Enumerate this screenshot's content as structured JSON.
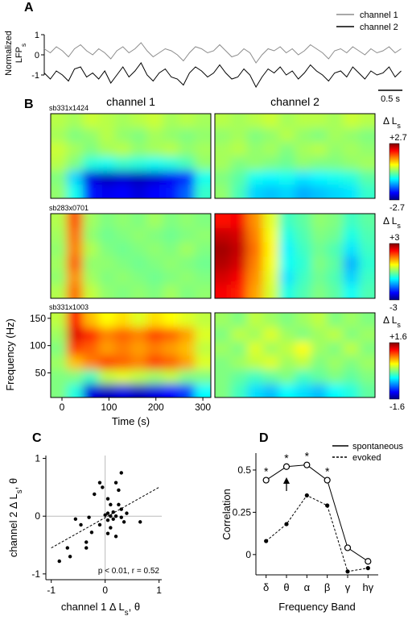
{
  "chart_data": [
    {
      "type": "line",
      "label": "A",
      "ylabel": [
        [
          "Normalized"
        ],
        [
          "LFP",
          "s"
        ]
      ],
      "xlim": [
        0,
        7.4
      ],
      "ylim": [
        -1.6,
        1.2
      ],
      "yticks": [
        1,
        0,
        -1
      ],
      "x": [
        0,
        0.125,
        0.25,
        0.375,
        0.5,
        0.625,
        0.75,
        0.875,
        1,
        1.125,
        1.25,
        1.375,
        1.5,
        1.625,
        1.75,
        1.875,
        2,
        2.125,
        2.25,
        2.375,
        2.5,
        2.625,
        2.75,
        2.875,
        3,
        3.125,
        3.25,
        3.375,
        3.5,
        3.625,
        3.75,
        3.875,
        4,
        4.125,
        4.25,
        4.375,
        4.5,
        4.625,
        4.75,
        4.875,
        5,
        5.125,
        5.25,
        5.375,
        5.5,
        5.625,
        5.75,
        5.875,
        6,
        6.125,
        6.25,
        6.375,
        6.5,
        6.625,
        6.75,
        6.875,
        7,
        7.125,
        7.25,
        7.375
      ],
      "series": [
        {
          "name": "channel 1",
          "color": "#8c8c8c",
          "values": [
            0.3,
            0.1,
            0.4,
            0.2,
            -0.1,
            0.3,
            0.5,
            0.2,
            0.0,
            0.3,
            0.1,
            -0.2,
            0.2,
            0.4,
            0.1,
            0.3,
            0.6,
            0.2,
            -0.1,
            0.1,
            0.3,
            0.2,
            0.0,
            -0.3,
            0.1,
            0.4,
            0.3,
            0.1,
            0.2,
            0.5,
            0.2,
            -0.1,
            0.0,
            0.3,
            0.1,
            -0.4,
            0.0,
            0.3,
            0.2,
            0.4,
            0.1,
            0.3,
            0.0,
            0.2,
            0.5,
            0.3,
            0.1,
            -0.2,
            0.2,
            0.3,
            0.1,
            0.4,
            0.2,
            0.0,
            0.3,
            0.1,
            0.2,
            0.4,
            0.1,
            0.3
          ]
        },
        {
          "name": "channel 2",
          "color": "#000000",
          "values": [
            -0.9,
            -1.2,
            -0.8,
            -1.0,
            -1.3,
            -0.7,
            -0.6,
            -1.1,
            -0.9,
            -1.2,
            -0.8,
            -1.4,
            -1.0,
            -0.6,
            -1.1,
            -0.8,
            -0.4,
            -1.0,
            -1.3,
            -0.9,
            -0.7,
            -1.1,
            -1.2,
            -1.5,
            -0.9,
            -0.6,
            -0.8,
            -1.1,
            -0.9,
            -0.5,
            -0.9,
            -1.2,
            -1.1,
            -0.7,
            -1.0,
            -1.6,
            -1.1,
            -0.7,
            -0.9,
            -0.6,
            -1.0,
            -0.8,
            -1.2,
            -0.9,
            -0.5,
            -0.8,
            -1.0,
            -1.3,
            -0.9,
            -0.8,
            -1.1,
            -0.6,
            -0.9,
            -1.2,
            -0.8,
            -1.0,
            -0.9,
            -0.6,
            -1.1,
            -0.8
          ]
        }
      ],
      "legend": "upper right",
      "scalebar": {
        "value": 0.5,
        "label": "0.5 s"
      }
    },
    {
      "type": "heatmap",
      "label": "B",
      "columns": [
        "channel 1",
        "channel 2"
      ],
      "xlim": [
        -24,
        317
      ],
      "xticks": [
        0,
        100,
        200,
        300
      ],
      "xlabel": "Time (s)",
      "ylim": [
        5,
        160
      ],
      "yticks": [
        50,
        100,
        150
      ],
      "ylabel": "Frequency (Hz)",
      "colorbar_label": [
        "Δ L",
        "s"
      ],
      "colormap": "jet",
      "recordings": [
        {
          "name": "sb331x1424",
          "clim": [
            -2.7,
            2.7
          ],
          "cticks": [
            {
              "value": 2.7,
              "label": "+2.7"
            },
            -2.7
          ],
          "z": [
            [
              [
                0.1,
                -0.6,
                -1.9,
                -2.1,
                -2.0,
                -2.2,
                -2.0,
                -1.9,
                -1.5,
                -0.4
              ],
              [
                0.0,
                -0.9,
                -2.2,
                -2.4,
                -2.3,
                -2.4,
                -2.3,
                -2.1,
                -1.8,
                -0.6
              ],
              [
                0.3,
                0.0,
                -0.5,
                -0.6,
                -0.4,
                -0.5,
                -0.6,
                -0.5,
                -0.3,
                0.1
              ],
              [
                0.4,
                0.2,
                0.0,
                0.2,
                0.3,
                0.1,
                0.2,
                0.3,
                0.1,
                0.2
              ],
              [
                0.2,
                0.0,
                0.1,
                0.3,
                0.1,
                0.0,
                0.2,
                0.1,
                0.0,
                0.1
              ],
              [
                0.3,
                0.2,
                0.4,
                0.3,
                0.2,
                0.3,
                0.4,
                0.2,
                0.3,
                0.2
              ]
            ],
            [
              [
                0.1,
                -0.3,
                -0.9,
                -1.0,
                -0.9,
                -1.1,
                -1.0,
                -0.9,
                -0.8,
                -0.4
              ],
              [
                0.0,
                -0.2,
                -0.6,
                -0.7,
                -0.6,
                -0.8,
                -0.7,
                -0.6,
                -0.5,
                -0.2
              ],
              [
                0.2,
                0.0,
                0.1,
                0.0,
                -0.1,
                0.1,
                0.0,
                0.0,
                0.1,
                0.2
              ],
              [
                0.2,
                0.3,
                0.1,
                0.2,
                0.0,
                0.2,
                0.3,
                0.1,
                0.2,
                0.1
              ],
              [
                0.1,
                0.2,
                0.0,
                0.1,
                0.3,
                0.1,
                0.0,
                0.2,
                0.1,
                0.0
              ],
              [
                0.3,
                0.2,
                0.3,
                0.4,
                0.2,
                0.3,
                0.3,
                0.2,
                0.4,
                0.3
              ]
            ]
          ]
        },
        {
          "name": "sb283x0701",
          "clim": [
            -3,
            3
          ],
          "cticks": [
            {
              "value": 3,
              "label": "+3"
            },
            -3
          ],
          "z": [
            [
              [
                0.3,
                1.6,
                0.4,
                0.1,
                0.0,
                0.1,
                0.0,
                0.2,
                0.0,
                0.1
              ],
              [
                0.1,
                1.4,
                0.2,
                0.0,
                0.1,
                0.0,
                -0.1,
                0.0,
                0.1,
                0.0
              ],
              [
                0.2,
                1.7,
                0.1,
                0.1,
                0.0,
                -0.1,
                0.0,
                0.1,
                0.0,
                -0.1
              ],
              [
                0.1,
                1.5,
                0.3,
                0.0,
                -0.1,
                0.0,
                0.1,
                0.0,
                0.2,
                0.0
              ],
              [
                0.2,
                1.6,
                0.1,
                -0.1,
                0.0,
                0.1,
                0.0,
                -0.1,
                0.0,
                0.1
              ],
              [
                0.3,
                1.8,
                0.2,
                0.0,
                0.1,
                0.0,
                0.2,
                0.0,
                0.1,
                0.0
              ]
            ],
            [
              [
                2.3,
                2.1,
                1.3,
                0.5,
                -0.6,
                -0.3,
                0.0,
                -0.2,
                -0.7,
                -0.3
              ],
              [
                2.5,
                2.3,
                1.4,
                0.6,
                -0.9,
                -0.4,
                -0.1,
                -0.3,
                -1.0,
                -0.4
              ],
              [
                2.7,
                2.5,
                1.5,
                0.7,
                -0.7,
                -0.5,
                0.0,
                -0.2,
                -1.2,
                -0.5
              ],
              [
                2.8,
                2.6,
                1.6,
                0.8,
                -0.8,
                -0.4,
                -0.1,
                -0.3,
                -0.9,
                -0.4
              ],
              [
                2.6,
                2.5,
                1.5,
                0.7,
                -0.6,
                -0.3,
                0.0,
                -0.1,
                -0.6,
                -0.3
              ],
              [
                2.2,
                2.3,
                1.4,
                0.6,
                -0.4,
                -0.2,
                0.1,
                0.0,
                -0.4,
                -0.2
              ]
            ]
          ]
        },
        {
          "name": "sb331x1003",
          "clim": [
            -1.6,
            1.6
          ],
          "cticks": [
            {
              "value": 1.6,
              "label": "+1.6"
            },
            -1.6
          ],
          "z": [
            [
              [
                0.0,
                -0.3,
                -1.3,
                -1.4,
                -1.3,
                -1.4,
                -1.3,
                -1.2,
                -1.0,
                -0.4
              ],
              [
                0.0,
                0.0,
                -0.2,
                0.2,
                0.3,
                0.2,
                0.1,
                0.2,
                0.0,
                0.0
              ],
              [
                0.1,
                0.6,
                0.8,
                1.0,
                0.9,
                0.8,
                1.0,
                0.9,
                0.7,
                0.3
              ],
              [
                0.0,
                1.0,
                0.9,
                0.7,
                0.8,
                0.7,
                0.8,
                0.7,
                0.6,
                0.2
              ],
              [
                0.1,
                1.3,
                1.1,
                0.8,
                0.9,
                0.8,
                1.0,
                0.9,
                0.7,
                0.3
              ],
              [
                0.2,
                1.2,
                0.6,
                0.4,
                0.5,
                0.3,
                0.5,
                0.4,
                0.3,
                0.2
              ]
            ],
            [
              [
                0.0,
                -0.2,
                -0.5,
                -0.6,
                -0.4,
                -0.5,
                -0.6,
                -0.4,
                -0.3,
                -0.1
              ],
              [
                0.0,
                -0.1,
                -0.2,
                -0.1,
                0.0,
                -0.2,
                -0.1,
                0.0,
                -0.1,
                0.0
              ],
              [
                0.0,
                0.1,
                0.2,
                0.3,
                0.1,
                0.2,
                0.0,
                0.1,
                0.0,
                0.1
              ],
              [
                0.1,
                0.0,
                0.3,
                0.1,
                0.2,
                0.4,
                0.1,
                0.0,
                0.2,
                0.0
              ],
              [
                0.0,
                0.2,
                0.1,
                0.3,
                0.1,
                0.0,
                0.1,
                0.2,
                0.0,
                0.1
              ],
              [
                0.1,
                0.0,
                0.2,
                0.1,
                0.0,
                0.1,
                0.2,
                0.0,
                0.1,
                0.0
              ]
            ]
          ]
        }
      ]
    },
    {
      "type": "scatter",
      "label": "C",
      "xlabel": [
        "channel 1 Δ L",
        "s",
        ", θ"
      ],
      "ylabel": [
        "channel 2 Δ L",
        "s",
        ", θ"
      ],
      "xlim": [
        -1.1,
        1.05
      ],
      "ylim": [
        -1.1,
        1.05
      ],
      "xticks": [
        -1,
        0,
        1
      ],
      "yticks": [
        1,
        0,
        -1
      ],
      "x": [
        0.3,
        0.2,
        0.25,
        0.05,
        -0.05,
        -0.1,
        -0.2,
        0.1,
        0.25,
        0.3,
        0.15,
        0.05,
        0.0,
        0.1,
        0.2,
        0.3,
        0.4,
        0.35,
        0.15,
        0.05,
        -0.3,
        -0.55,
        -0.45,
        -0.1,
        0.1,
        -0.25,
        0.05,
        0.2,
        -0.35,
        -0.35,
        0.65,
        -0.7,
        -0.65,
        -0.85
      ],
      "y": [
        0.75,
        0.58,
        0.45,
        0.3,
        0.5,
        0.58,
        0.38,
        0.2,
        0.2,
        0.12,
        0.07,
        0.05,
        0.02,
        0.0,
        0.0,
        -0.02,
        0.05,
        -0.1,
        -0.05,
        -0.07,
        -0.02,
        -0.05,
        -0.15,
        -0.15,
        -0.2,
        -0.28,
        -0.3,
        -0.35,
        -0.45,
        -0.55,
        -0.1,
        -0.55,
        -0.7,
        -0.78
      ],
      "color": "#000000",
      "fit": {
        "x": [
          -1,
          1
        ],
        "y": [
          -0.55,
          0.5
        ]
      },
      "annotation": "p < 0.01, r = 0.52"
    },
    {
      "type": "line",
      "label": "D",
      "xlabel": "Frequency Band",
      "ylabel": "Correlation",
      "categories": [
        "δ",
        "θ",
        "α",
        "β",
        "γ",
        "hγ"
      ],
      "ylim": [
        -0.12,
        0.6
      ],
      "yticks": [
        0,
        0.25,
        0.5
      ],
      "series": [
        {
          "name": "spontaneous",
          "color": "#000000",
          "linestyle": "solid",
          "marker": "open-circle",
          "values": [
            0.44,
            0.52,
            0.53,
            0.44,
            0.04,
            -0.04
          ]
        },
        {
          "name": "evoked",
          "color": "#000000",
          "linestyle": "dashed",
          "marker": "dot",
          "values": [
            0.08,
            0.18,
            0.35,
            0.29,
            -0.1,
            -0.08
          ]
        }
      ],
      "significance": [
        "*",
        "*",
        "*",
        "*",
        null,
        null
      ],
      "legend": "upper right"
    }
  ]
}
